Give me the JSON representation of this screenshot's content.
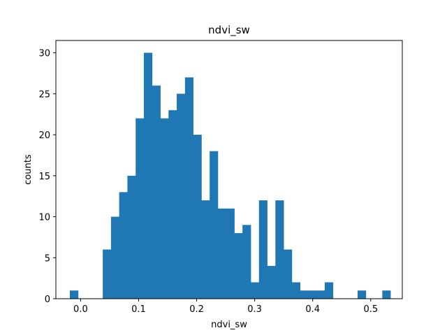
{
  "chart_data": {
    "type": "bar",
    "title": "ndvi_sw",
    "xlabel": "ndvi_sw",
    "ylabel": "counts",
    "xlim": [
      -0.0426,
      0.5544
    ],
    "ylim": [
      0,
      31.5
    ],
    "grid": false,
    "bar_color": "#1f77b4",
    "bin_edges": [
      -0.0185,
      -0.0043,
      0.0099,
      0.024,
      0.0382,
      0.0524,
      0.0665,
      0.0807,
      0.0949,
      0.109,
      0.1232,
      0.1374,
      0.1515,
      0.1657,
      0.1799,
      0.194,
      0.2082,
      0.2224,
      0.2365,
      0.2507,
      0.2649,
      0.279,
      0.2932,
      0.3074,
      0.3215,
      0.3357,
      0.3499,
      0.364,
      0.3782,
      0.3924,
      0.4065,
      0.4207,
      0.4349,
      0.449,
      0.4632,
      0.4774,
      0.4915,
      0.5057,
      0.5199,
      0.534
    ],
    "values": [
      1,
      0,
      0,
      0,
      6,
      10,
      13,
      15,
      22,
      30,
      26,
      22,
      23,
      25,
      27,
      20,
      12,
      18,
      11,
      11,
      8,
      9,
      2,
      12,
      4,
      12,
      6,
      2,
      1,
      1,
      1,
      2,
      0,
      0,
      0,
      1,
      0,
      0,
      1
    ],
    "x_ticks": [
      {
        "value": 0.0,
        "label": "0.0"
      },
      {
        "value": 0.1,
        "label": "0.1"
      },
      {
        "value": 0.2,
        "label": "0.2"
      },
      {
        "value": 0.3,
        "label": "0.3"
      },
      {
        "value": 0.4,
        "label": "0.4"
      },
      {
        "value": 0.5,
        "label": "0.5"
      }
    ],
    "y_ticks": [
      {
        "value": 0,
        "label": "0"
      },
      {
        "value": 5,
        "label": "5"
      },
      {
        "value": 10,
        "label": "10"
      },
      {
        "value": 15,
        "label": "15"
      },
      {
        "value": 20,
        "label": "20"
      },
      {
        "value": 25,
        "label": "25"
      },
      {
        "value": 30,
        "label": "30"
      }
    ]
  }
}
